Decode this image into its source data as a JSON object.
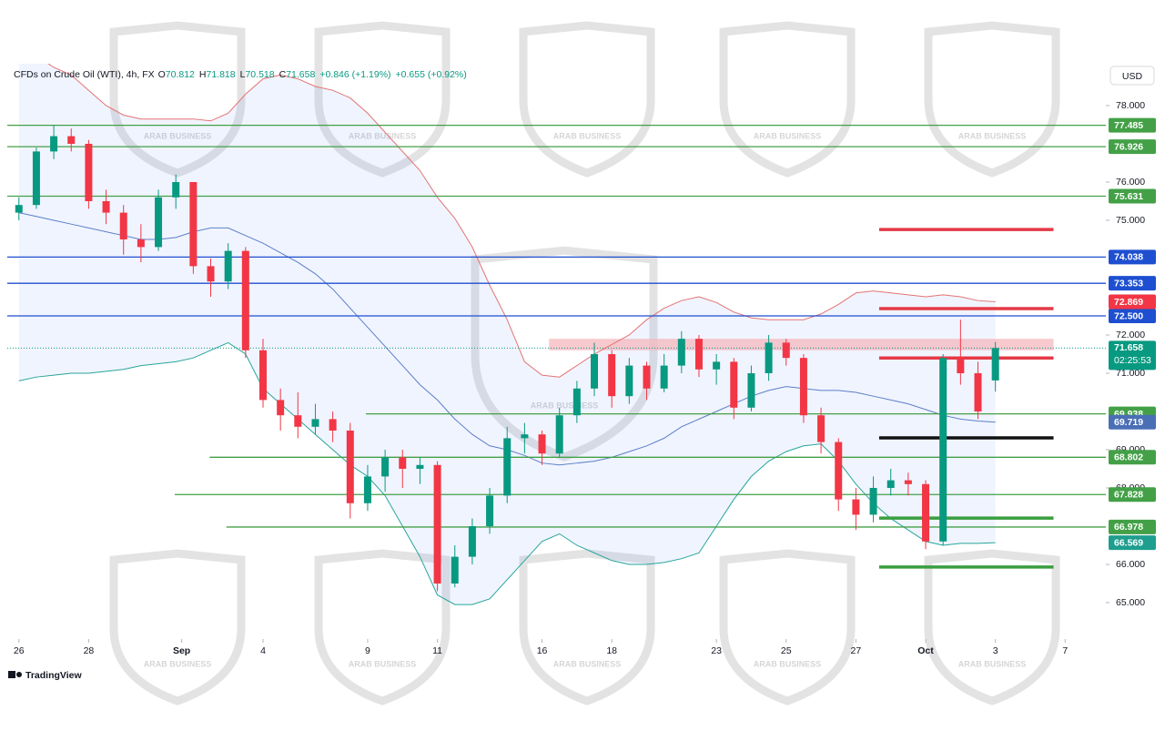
{
  "chart_data": {
    "type": "candlestick",
    "title": "CFDs on Crude Oil (WTI), 4h, FX",
    "ohlc_labels": [
      "O",
      "H",
      "L",
      "C"
    ],
    "change": "+0.846 (+1.19%)",
    "change2": "+0.655 (+0.92%)",
    "currency": "USD",
    "countdown": "02:25:53",
    "watermark": "ARAB BUSINESS",
    "branding": "TradingView",
    "up_color": "#089981",
    "down_color": "#f23645",
    "x": [
      0,
      3,
      6,
      9,
      12,
      15,
      18,
      21,
      24,
      27,
      30,
      33,
      36,
      39,
      42,
      45,
      48,
      51,
      54,
      57,
      60,
      63,
      66,
      69,
      72,
      75,
      78,
      81,
      84,
      87,
      90,
      93,
      96,
      99,
      102,
      105,
      108,
      111,
      114,
      117,
      120,
      123,
      126,
      129,
      132,
      135,
      138,
      141,
      144,
      147,
      150,
      153,
      156,
      159,
      162,
      165,
      168
    ],
    "open": [
      75.2,
      75.4,
      76.8,
      77.2,
      77.0,
      75.5,
      75.2,
      74.5,
      74.3,
      75.6,
      76.0,
      73.8,
      73.4,
      74.2,
      71.6,
      70.3,
      69.9,
      69.6,
      69.8,
      69.5,
      67.6,
      68.3,
      68.8,
      68.5,
      68.6,
      65.5,
      66.2,
      67.0,
      67.8,
      69.3,
      69.4,
      68.9,
      69.9,
      70.6,
      71.5,
      70.4,
      71.2,
      70.6,
      71.2,
      71.9,
      71.1,
      71.3,
      70.1,
      71.0,
      71.8,
      71.4,
      69.9,
      69.2,
      67.7,
      67.3,
      68.0,
      68.2,
      68.1,
      66.6,
      71.4,
      71.0,
      70.812
    ],
    "high": [
      75.6,
      76.9,
      77.5,
      77.4,
      77.1,
      75.8,
      75.4,
      74.9,
      75.8,
      76.2,
      76.0,
      74.0,
      74.4,
      74.3,
      71.9,
      70.6,
      70.5,
      70.2,
      70.0,
      69.7,
      68.6,
      69.0,
      69.0,
      68.8,
      68.7,
      66.5,
      67.2,
      68.0,
      69.6,
      69.7,
      69.5,
      70.1,
      70.8,
      71.8,
      71.6,
      71.4,
      71.3,
      71.5,
      72.1,
      72.0,
      71.5,
      71.4,
      71.2,
      72.0,
      71.9,
      71.5,
      70.1,
      69.3,
      68.0,
      68.3,
      68.5,
      68.4,
      68.2,
      71.5,
      72.4,
      71.3,
      71.818
    ],
    "low": [
      75.0,
      75.3,
      76.6,
      76.8,
      75.3,
      74.9,
      74.1,
      73.9,
      74.2,
      75.3,
      73.6,
      73.0,
      73.2,
      71.4,
      70.1,
      69.5,
      69.3,
      69.4,
      69.2,
      67.2,
      67.4,
      67.9,
      68.0,
      68.1,
      65.3,
      65.4,
      66.0,
      66.8,
      67.6,
      68.9,
      68.6,
      68.8,
      69.7,
      70.4,
      70.1,
      70.2,
      70.3,
      70.5,
      71.0,
      70.9,
      70.7,
      69.8,
      70.0,
      70.8,
      71.2,
      69.7,
      68.9,
      67.4,
      66.9,
      67.1,
      67.8,
      67.8,
      66.4,
      66.5,
      70.7,
      69.8,
      70.518
    ],
    "close": [
      75.4,
      76.8,
      77.2,
      77.0,
      75.5,
      75.2,
      74.5,
      74.3,
      75.6,
      76.0,
      73.8,
      73.4,
      74.2,
      71.6,
      70.3,
      69.9,
      69.6,
      69.8,
      69.5,
      67.6,
      68.3,
      68.8,
      68.5,
      68.6,
      65.5,
      66.2,
      67.0,
      67.8,
      69.3,
      69.4,
      68.9,
      69.9,
      70.6,
      71.5,
      70.4,
      71.2,
      70.6,
      71.2,
      71.9,
      71.1,
      71.3,
      70.1,
      71.0,
      71.8,
      71.4,
      69.9,
      69.2,
      67.7,
      67.3,
      68.0,
      68.2,
      68.1,
      66.6,
      71.4,
      71.0,
      70.0,
      71.658
    ],
    "bands": [
      {
        "color": "#e57373",
        "tag_color": "#f23645",
        "values": [
          79.6,
          79.3,
          79.0,
          78.8,
          78.4,
          78.0,
          77.75,
          77.65,
          77.65,
          77.65,
          77.65,
          77.6,
          77.8,
          78.3,
          78.7,
          78.8,
          78.7,
          78.5,
          78.4,
          78.2,
          77.8,
          77.3,
          76.8,
          76.3,
          75.6,
          75.05,
          74.3,
          73.3,
          72.4,
          71.3,
          70.95,
          70.9,
          71.2,
          71.5,
          71.75,
          72.0,
          72.4,
          72.7,
          72.9,
          73.0,
          72.85,
          72.6,
          72.45,
          72.4,
          72.4,
          72.4,
          72.55,
          72.8,
          73.1,
          73.15,
          73.1,
          73.05,
          73.0,
          73.05,
          73.0,
          72.9,
          72.869
        ]
      },
      {
        "color": "#5b7fc7",
        "tag_color": "#4a6fb5",
        "values": [
          75.2,
          75.1,
          75.0,
          74.9,
          74.8,
          74.7,
          74.6,
          74.5,
          74.5,
          74.55,
          74.7,
          74.8,
          74.8,
          74.6,
          74.4,
          74.15,
          73.9,
          73.6,
          73.2,
          72.7,
          72.2,
          71.7,
          71.2,
          70.7,
          70.3,
          69.8,
          69.4,
          69.1,
          69.0,
          68.85,
          68.65,
          68.6,
          68.65,
          68.7,
          68.8,
          68.95,
          69.1,
          69.3,
          69.6,
          69.8,
          70.0,
          70.2,
          70.4,
          70.55,
          70.65,
          70.6,
          70.55,
          70.55,
          70.5,
          70.4,
          70.3,
          70.2,
          70.05,
          69.9,
          69.8,
          69.75,
          69.719
        ]
      },
      {
        "color": "#26a69a",
        "tag_color": "#1e9e8f",
        "values": [
          70.8,
          70.9,
          70.95,
          71.0,
          71.0,
          71.05,
          71.1,
          71.2,
          71.25,
          71.3,
          71.4,
          71.6,
          71.8,
          71.5,
          70.6,
          70.2,
          69.8,
          69.4,
          69.0,
          68.6,
          68.3,
          67.8,
          67.0,
          66.2,
          65.2,
          64.95,
          64.95,
          65.1,
          65.6,
          66.1,
          66.6,
          66.8,
          66.5,
          66.3,
          66.1,
          66.0,
          66.0,
          66.05,
          66.15,
          66.3,
          67.0,
          67.7,
          68.3,
          68.7,
          68.95,
          69.1,
          69.15,
          68.7,
          68.1,
          67.6,
          67.2,
          66.9,
          66.6,
          66.5,
          66.55,
          66.55,
          66.569
        ]
      }
    ],
    "band_fill": "#2962ff",
    "xlim": [
      -2,
      187
    ],
    "xticks": [
      {
        "value": 0,
        "label": "26"
      },
      {
        "value": 12,
        "label": "28"
      },
      {
        "value": 28,
        "label": "Sep"
      },
      {
        "value": 42,
        "label": "4"
      },
      {
        "value": 60,
        "label": "9"
      },
      {
        "value": 72,
        "label": "11"
      },
      {
        "value": 90,
        "label": "16"
      },
      {
        "value": 102,
        "label": "18"
      },
      {
        "value": 120,
        "label": "23"
      },
      {
        "value": 132,
        "label": "25"
      },
      {
        "value": 144,
        "label": "27"
      },
      {
        "value": 156,
        "label": "Oct"
      },
      {
        "value": 168,
        "label": "3"
      },
      {
        "value": 180,
        "label": "7"
      }
    ],
    "ylim": [
      64.095,
      79.095
    ],
    "yticks": [
      {
        "value": 78,
        "label": "78.000"
      },
      {
        "value": 76,
        "label": "76.000"
      },
      {
        "value": 75,
        "label": "75.000"
      },
      {
        "value": 72,
        "label": "72.000"
      },
      {
        "value": 71,
        "label": "71.000"
      },
      {
        "value": 69,
        "label": "69.000"
      },
      {
        "value": 68,
        "label": "68.000"
      },
      {
        "value": 66,
        "label": "66.000"
      },
      {
        "value": 65,
        "label": "65.000"
      }
    ],
    "levels": [
      {
        "value": 77.485,
        "color": "#43a047"
      },
      {
        "value": 76.926,
        "color": "#43a047"
      },
      {
        "value": 75.631,
        "color": "#43a047"
      },
      {
        "value": 74.038,
        "color": "#1e4fd0"
      },
      {
        "value": 73.353,
        "color": "#1e4fd0"
      },
      {
        "value": 72.5,
        "label": "72.500",
        "color": "#1e4fd0"
      },
      {
        "value": 69.938,
        "color": "#43a047",
        "x0": 59.7
      },
      {
        "value": 68.802,
        "color": "#43a047",
        "x0": 32.8
      },
      {
        "value": 67.828,
        "color": "#43a047",
        "x0": 26.8
      },
      {
        "value": 66.978,
        "color": "#43a047",
        "x0": 35.7
      }
    ],
    "segments": [
      {
        "value": 74.76,
        "color": "#e53946",
        "x0": 148,
        "x1": 178
      },
      {
        "value": 72.69,
        "color": "#e53946",
        "x0": 148,
        "x1": 178
      },
      {
        "value": 71.4,
        "color": "#e53946",
        "x0": 148,
        "x1": 178
      },
      {
        "value": 69.31,
        "color": "#111111",
        "x0": 148,
        "x1": 178
      },
      {
        "value": 67.21,
        "color": "#3a9e3f",
        "x0": 148,
        "x1": 178
      },
      {
        "value": 65.93,
        "color": "#3a9e3f",
        "x0": 148,
        "x1": 178
      }
    ],
    "zone": {
      "from": 71.6,
      "to": 71.9,
      "x0": 91.2,
      "x1": 178,
      "color": "#f6b7bd"
    }
  }
}
